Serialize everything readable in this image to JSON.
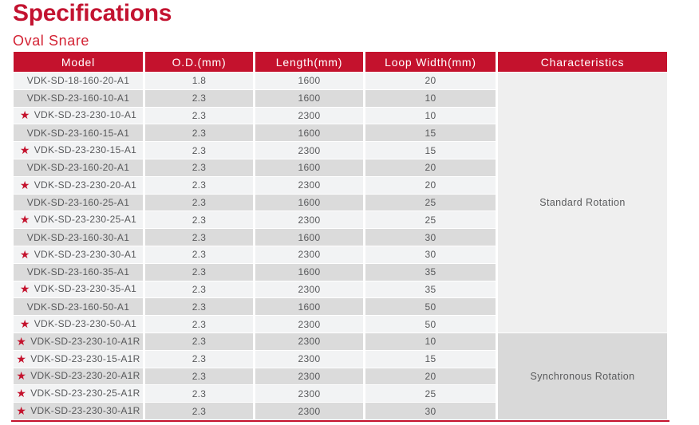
{
  "page": {
    "title": "Specifications",
    "subtitle": "Oval Snare"
  },
  "colors": {
    "header_bg": "#C4122D",
    "title_red": "#C31330",
    "subtitle_red": "#D32233",
    "row_light": "#F2F3F4",
    "row_dark": "#DBDBDB",
    "characteristics_standard_bg": "#EFEFEF",
    "characteristics_synchronous_bg": "#D9D9D9",
    "body_text": "#58595B",
    "star": "#C4122D",
    "bottom_border": "#C4122D"
  },
  "table": {
    "columns": [
      "Model",
      "O.D.(mm)",
      "Length(mm)",
      "Loop Width(mm)",
      "Characteristics"
    ],
    "star_icon": "★",
    "groups": [
      {
        "characteristics": "Standard Rotation",
        "rows": [
          {
            "starred": false,
            "model": "VDK-SD-18-160-20-A1",
            "od": "1.8",
            "length": "1600",
            "loop_width": "20"
          },
          {
            "starred": false,
            "model": "VDK-SD-23-160-10-A1",
            "od": "2.3",
            "length": "1600",
            "loop_width": "10"
          },
          {
            "starred": true,
            "model": "VDK-SD-23-230-10-A1",
            "od": "2.3",
            "length": "2300",
            "loop_width": "10"
          },
          {
            "starred": false,
            "model": "VDK-SD-23-160-15-A1",
            "od": "2.3",
            "length": "1600",
            "loop_width": "15"
          },
          {
            "starred": true,
            "model": "VDK-SD-23-230-15-A1",
            "od": "2.3",
            "length": "2300",
            "loop_width": "15"
          },
          {
            "starred": false,
            "model": "VDK-SD-23-160-20-A1",
            "od": "2.3",
            "length": "1600",
            "loop_width": "20"
          },
          {
            "starred": true,
            "model": "VDK-SD-23-230-20-A1",
            "od": "2.3",
            "length": "2300",
            "loop_width": "20"
          },
          {
            "starred": false,
            "model": "VDK-SD-23-160-25-A1",
            "od": "2.3",
            "length": "1600",
            "loop_width": "25"
          },
          {
            "starred": true,
            "model": "VDK-SD-23-230-25-A1",
            "od": "2.3",
            "length": "2300",
            "loop_width": "25"
          },
          {
            "starred": false,
            "model": "VDK-SD-23-160-30-A1",
            "od": "2.3",
            "length": "1600",
            "loop_width": "30"
          },
          {
            "starred": true,
            "model": "VDK-SD-23-230-30-A1",
            "od": "2.3",
            "length": "2300",
            "loop_width": "30"
          },
          {
            "starred": false,
            "model": "VDK-SD-23-160-35-A1",
            "od": "2.3",
            "length": "1600",
            "loop_width": "35"
          },
          {
            "starred": true,
            "model": "VDK-SD-23-230-35-A1",
            "od": "2.3",
            "length": "2300",
            "loop_width": "35"
          },
          {
            "starred": false,
            "model": "VDK-SD-23-160-50-A1",
            "od": "2.3",
            "length": "1600",
            "loop_width": "50"
          },
          {
            "starred": true,
            "model": "VDK-SD-23-230-50-A1",
            "od": "2.3",
            "length": "2300",
            "loop_width": "50"
          }
        ]
      },
      {
        "characteristics": "Synchronous Rotation",
        "rows": [
          {
            "starred": true,
            "model": "VDK-SD-23-230-10-A1R",
            "od": "2.3",
            "length": "2300",
            "loop_width": "10"
          },
          {
            "starred": true,
            "model": "VDK-SD-23-230-15-A1R",
            "od": "2.3",
            "length": "2300",
            "loop_width": "15"
          },
          {
            "starred": true,
            "model": "VDK-SD-23-230-20-A1R",
            "od": "2.3",
            "length": "2300",
            "loop_width": "20"
          },
          {
            "starred": true,
            "model": "VDK-SD-23-230-25-A1R",
            "od": "2.3",
            "length": "2300",
            "loop_width": "25"
          },
          {
            "starred": true,
            "model": "VDK-SD-23-230-30-A1R",
            "od": "2.3",
            "length": "2300",
            "loop_width": "30"
          }
        ]
      }
    ]
  }
}
